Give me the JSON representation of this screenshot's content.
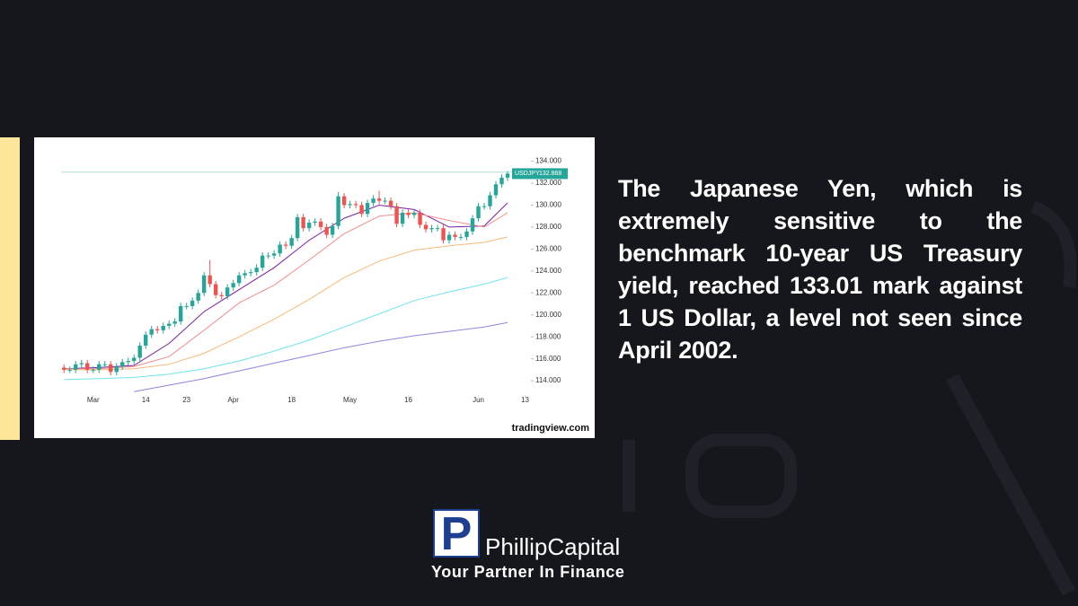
{
  "chart_data": {
    "type": "candlestick",
    "symbol": "USDJPY",
    "last_price": 132.868,
    "source": "tradingview.com",
    "up_color": "#26a69a",
    "down_color": "#ef5350",
    "reference_level": 133.0,
    "reference_color": "#b2dfdb",
    "xlim": [
      -0.5,
      80
    ],
    "xticks": [
      {
        "value": 5,
        "label": "Mar"
      },
      {
        "value": 14,
        "label": "14"
      },
      {
        "value": 21,
        "label": "23"
      },
      {
        "value": 29,
        "label": "Apr"
      },
      {
        "value": 39,
        "label": "18"
      },
      {
        "value": 49,
        "label": "May"
      },
      {
        "value": 59,
        "label": "16"
      },
      {
        "value": 71,
        "label": "Jun"
      },
      {
        "value": 79,
        "label": "13"
      }
    ],
    "ylim": [
      112.7,
      135.6
    ],
    "yticks": [
      {
        "value": 114,
        "label": "114.000"
      },
      {
        "value": 116,
        "label": "116.000"
      },
      {
        "value": 118,
        "label": "118.000"
      },
      {
        "value": 120,
        "label": "120.000"
      },
      {
        "value": 122,
        "label": "122.000"
      },
      {
        "value": 124,
        "label": "124.000"
      },
      {
        "value": 126,
        "label": "126.000"
      },
      {
        "value": 128,
        "label": "128.000"
      },
      {
        "value": 130,
        "label": "130.000"
      },
      {
        "value": 132,
        "label": "132.000"
      },
      {
        "value": 134,
        "label": "134.000"
      }
    ],
    "open": [
      115.2,
      115.0,
      115.0,
      115.5,
      115.6,
      115.0,
      115.0,
      115.5,
      115.5,
      114.8,
      115.3,
      115.7,
      115.8,
      116.1,
      117.2,
      118.2,
      118.7,
      118.6,
      119.0,
      119.2,
      119.4,
      120.8,
      120.8,
      121.3,
      122.0,
      123.6,
      122.8,
      121.8,
      121.7,
      122.5,
      122.9,
      123.6,
      123.8,
      123.9,
      124.3,
      125.4,
      125.4,
      125.6,
      126.4,
      126.3,
      127.0,
      128.9,
      127.9,
      128.4,
      128.5,
      128.0,
      127.3,
      128.1,
      130.8,
      130.0,
      130.1,
      130.0,
      129.2,
      130.2,
      130.6,
      130.4,
      130.4,
      129.9,
      128.3,
      129.3,
      129.1,
      129.3,
      128.2,
      127.8,
      127.9,
      127.9,
      126.8,
      127.3,
      127.1,
      127.1,
      127.6,
      128.8,
      129.9,
      129.9,
      130.9,
      131.9,
      132.5
    ],
    "high": [
      115.5,
      115.3,
      115.8,
      115.9,
      115.9,
      115.3,
      115.8,
      115.8,
      115.8,
      115.6,
      116.0,
      116.1,
      116.4,
      117.5,
      118.5,
      119.0,
      119.0,
      119.3,
      119.5,
      119.7,
      121.1,
      121.1,
      121.6,
      122.3,
      123.9,
      125.0,
      123.1,
      122.1,
      122.8,
      123.2,
      123.9,
      124.1,
      124.2,
      124.6,
      125.7,
      125.7,
      125.9,
      126.7,
      126.7,
      127.3,
      129.2,
      129.2,
      128.7,
      128.8,
      128.8,
      128.3,
      128.4,
      131.2,
      131.1,
      130.4,
      130.4,
      130.3,
      130.5,
      130.9,
      131.3,
      130.7,
      130.7,
      130.2,
      129.6,
      129.6,
      129.6,
      129.6,
      128.5,
      128.2,
      128.2,
      128.2,
      127.6,
      127.6,
      127.4,
      127.9,
      129.1,
      130.2,
      130.2,
      131.2,
      132.2,
      132.8,
      133.1
    ],
    "low": [
      114.7,
      114.7,
      114.7,
      115.2,
      114.7,
      114.7,
      114.7,
      115.2,
      114.5,
      114.5,
      115.0,
      115.4,
      115.5,
      115.8,
      116.9,
      117.9,
      118.3,
      118.3,
      118.7,
      118.9,
      119.1,
      120.5,
      120.5,
      121.0,
      121.7,
      122.5,
      121.5,
      121.4,
      121.4,
      122.2,
      122.6,
      123.3,
      123.5,
      123.6,
      124.0,
      125.1,
      125.1,
      125.3,
      126.0,
      126.0,
      126.7,
      127.6,
      127.6,
      128.1,
      127.7,
      127.0,
      127.0,
      127.8,
      129.7,
      129.7,
      129.7,
      128.9,
      128.9,
      129.9,
      130.1,
      130.1,
      129.6,
      128.0,
      128.0,
      128.8,
      128.8,
      127.9,
      127.5,
      127.5,
      127.6,
      126.5,
      126.5,
      126.8,
      126.8,
      126.8,
      127.3,
      128.5,
      129.6,
      129.6,
      130.6,
      131.6,
      132.2
    ],
    "close": [
      115.0,
      115.0,
      115.5,
      115.6,
      115.0,
      115.0,
      115.5,
      115.5,
      114.8,
      115.3,
      115.7,
      115.8,
      116.1,
      117.2,
      118.2,
      118.7,
      118.6,
      119.0,
      119.2,
      119.4,
      120.8,
      120.8,
      121.3,
      122.0,
      123.6,
      122.8,
      121.8,
      121.7,
      122.5,
      122.9,
      123.6,
      123.8,
      123.9,
      124.3,
      125.4,
      125.4,
      125.6,
      126.4,
      126.3,
      127.0,
      128.9,
      127.9,
      128.4,
      128.5,
      128.0,
      127.3,
      128.1,
      130.8,
      130.0,
      130.1,
      130.0,
      129.2,
      130.2,
      130.6,
      130.4,
      130.4,
      129.9,
      128.3,
      129.3,
      129.1,
      129.3,
      128.2,
      127.8,
      127.9,
      127.9,
      126.8,
      127.3,
      127.1,
      127.1,
      127.6,
      128.8,
      129.9,
      129.9,
      130.9,
      131.9,
      132.5,
      132.868
    ],
    "moving_averages": [
      {
        "color": "#7b1fa2",
        "x": [
          0,
          6,
          12,
          18,
          24,
          30,
          36,
          42,
          48,
          54,
          60,
          66,
          72,
          76
        ],
        "values": [
          115.1,
          115.2,
          115.4,
          117.4,
          120.3,
          122.3,
          124.3,
          126.8,
          128.8,
          130.0,
          129.6,
          128.0,
          128.1,
          130.2
        ]
      },
      {
        "color": "#f28b8b",
        "x": [
          0,
          6,
          12,
          18,
          24,
          30,
          36,
          42,
          48,
          54,
          60,
          66,
          72,
          76
        ],
        "values": [
          115.1,
          115.1,
          115.3,
          116.2,
          118.6,
          121.1,
          122.7,
          125.0,
          127.4,
          129.0,
          129.3,
          128.6,
          128.0,
          129.3
        ]
      },
      {
        "color": "#f9b97a",
        "x": [
          0,
          6,
          12,
          18,
          24,
          30,
          36,
          42,
          48,
          54,
          60,
          66,
          72,
          76
        ],
        "values": [
          115.0,
          115.0,
          115.1,
          115.5,
          116.5,
          118.0,
          119.6,
          121.4,
          123.4,
          124.9,
          125.9,
          126.3,
          126.6,
          127.1
        ]
      },
      {
        "color": "#6fe3ef",
        "x": [
          0,
          6,
          12,
          18,
          24,
          30,
          36,
          42,
          48,
          54,
          60,
          66,
          72,
          76
        ],
        "values": [
          114.1,
          114.2,
          114.3,
          114.6,
          115.1,
          115.8,
          116.7,
          117.7,
          118.9,
          120.1,
          121.3,
          122.1,
          122.8,
          123.4
        ]
      },
      {
        "color": "#8c86e0",
        "x": [
          0,
          6,
          12,
          18,
          24,
          30,
          36,
          42,
          48,
          54,
          60,
          66,
          72,
          76
        ],
        "values": [
          null,
          null,
          113.0,
          113.6,
          114.2,
          114.9,
          115.6,
          116.3,
          117.0,
          117.6,
          118.1,
          118.5,
          118.9,
          119.3
        ]
      }
    ]
  },
  "text": {
    "body": "The Japanese Yen, which is extremely sensitive to the benchmark 10-year US Treasury yield, reached 133.01 mark against 1 US Dollar, a level not seen since April 2002."
  },
  "brand": {
    "logo_letter": "P",
    "name": "PhillipCapital",
    "tagline": "Your Partner In Finance"
  }
}
